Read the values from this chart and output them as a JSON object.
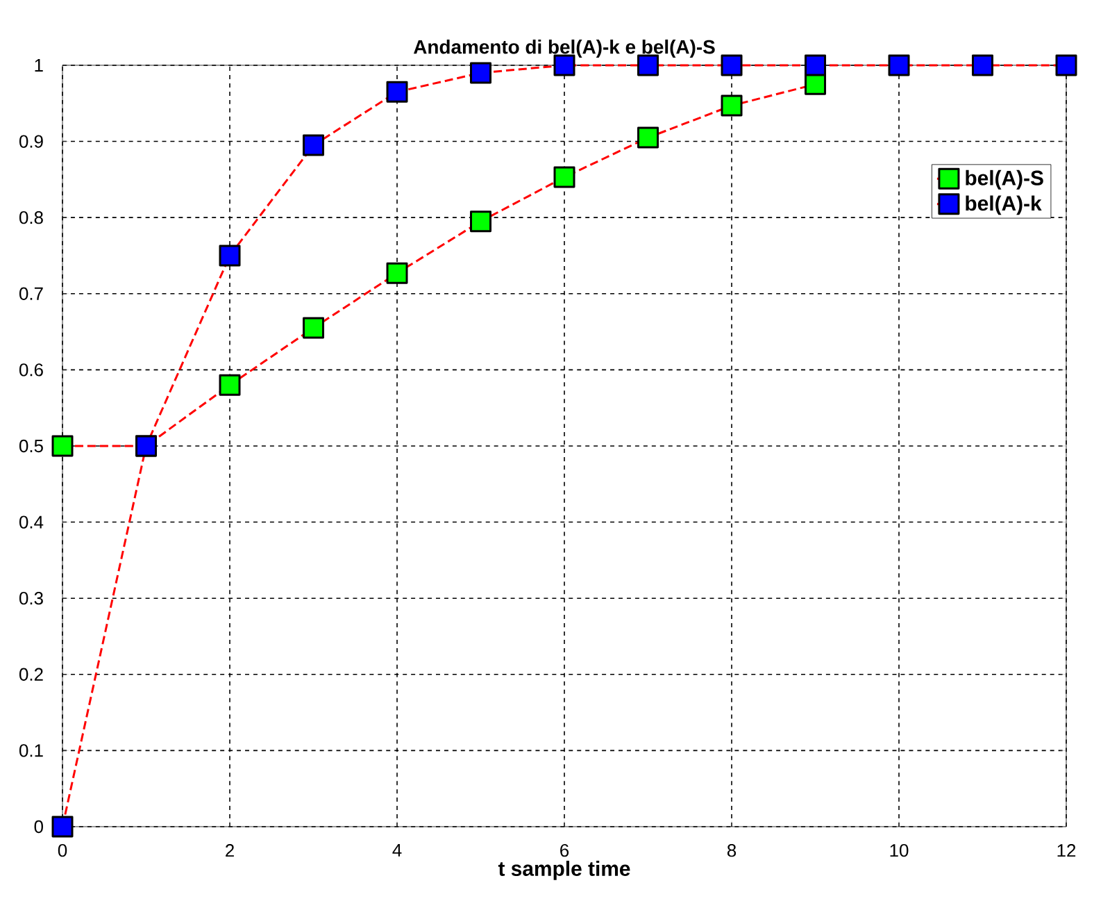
{
  "chart_data": {
    "type": "line",
    "title": "Andamento di bel(A)-k e bel(A)-S",
    "xlabel": "t sample time",
    "x": [
      0,
      1,
      2,
      3,
      4,
      5,
      6,
      7,
      8,
      9,
      10,
      11,
      12
    ],
    "series": [
      {
        "name": "bel(A)-S",
        "color": "#00ff00",
        "values": [
          0.5,
          0.5,
          0.58,
          0.655,
          0.727,
          0.795,
          0.853,
          0.905,
          0.947,
          0.975,
          null,
          null,
          null
        ]
      },
      {
        "name": "bel(A)-k",
        "color": "#0000ff",
        "values": [
          0,
          0.5,
          0.75,
          0.895,
          0.965,
          0.99,
          1,
          1,
          1,
          1,
          1,
          1,
          1
        ]
      }
    ],
    "xlim": [
      0,
      12
    ],
    "ylim": [
      0,
      1
    ],
    "xticks": [
      0,
      2,
      4,
      6,
      8,
      10,
      12
    ],
    "yticks": [
      0,
      0.1,
      0.2,
      0.3,
      0.4,
      0.5,
      0.6,
      0.7,
      0.8,
      0.9,
      1
    ],
    "grid": true,
    "legend": "top right",
    "marker": "square",
    "line_style": "dashed"
  }
}
